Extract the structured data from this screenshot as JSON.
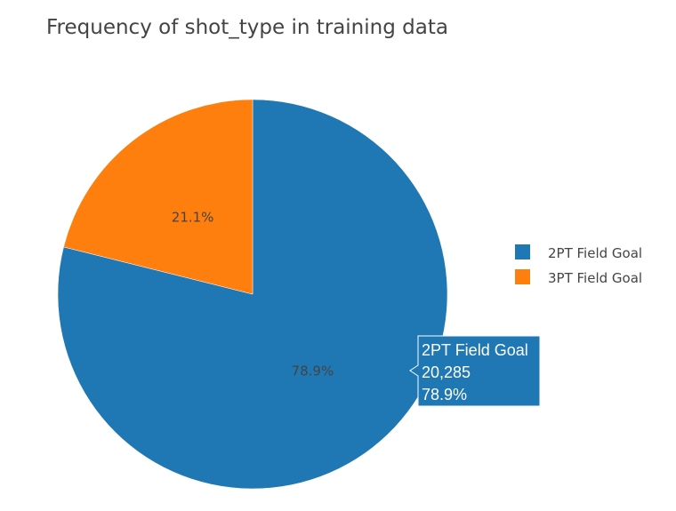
{
  "chart_data": {
    "type": "pie",
    "title": "Frequency of shot_type in training data",
    "categories": [
      "2PT Field Goal",
      "3PT Field Goal"
    ],
    "values": [
      20285,
      5425
    ],
    "percent_labels": [
      "78.9%",
      "21.1%"
    ],
    "colors": [
      "#1f77b4",
      "#ff7f0e"
    ],
    "legend_position": "right",
    "hover": {
      "label": "2PT Field Goal",
      "value": "20,285",
      "percent": "78.9%",
      "color": "#1f77b4"
    }
  }
}
